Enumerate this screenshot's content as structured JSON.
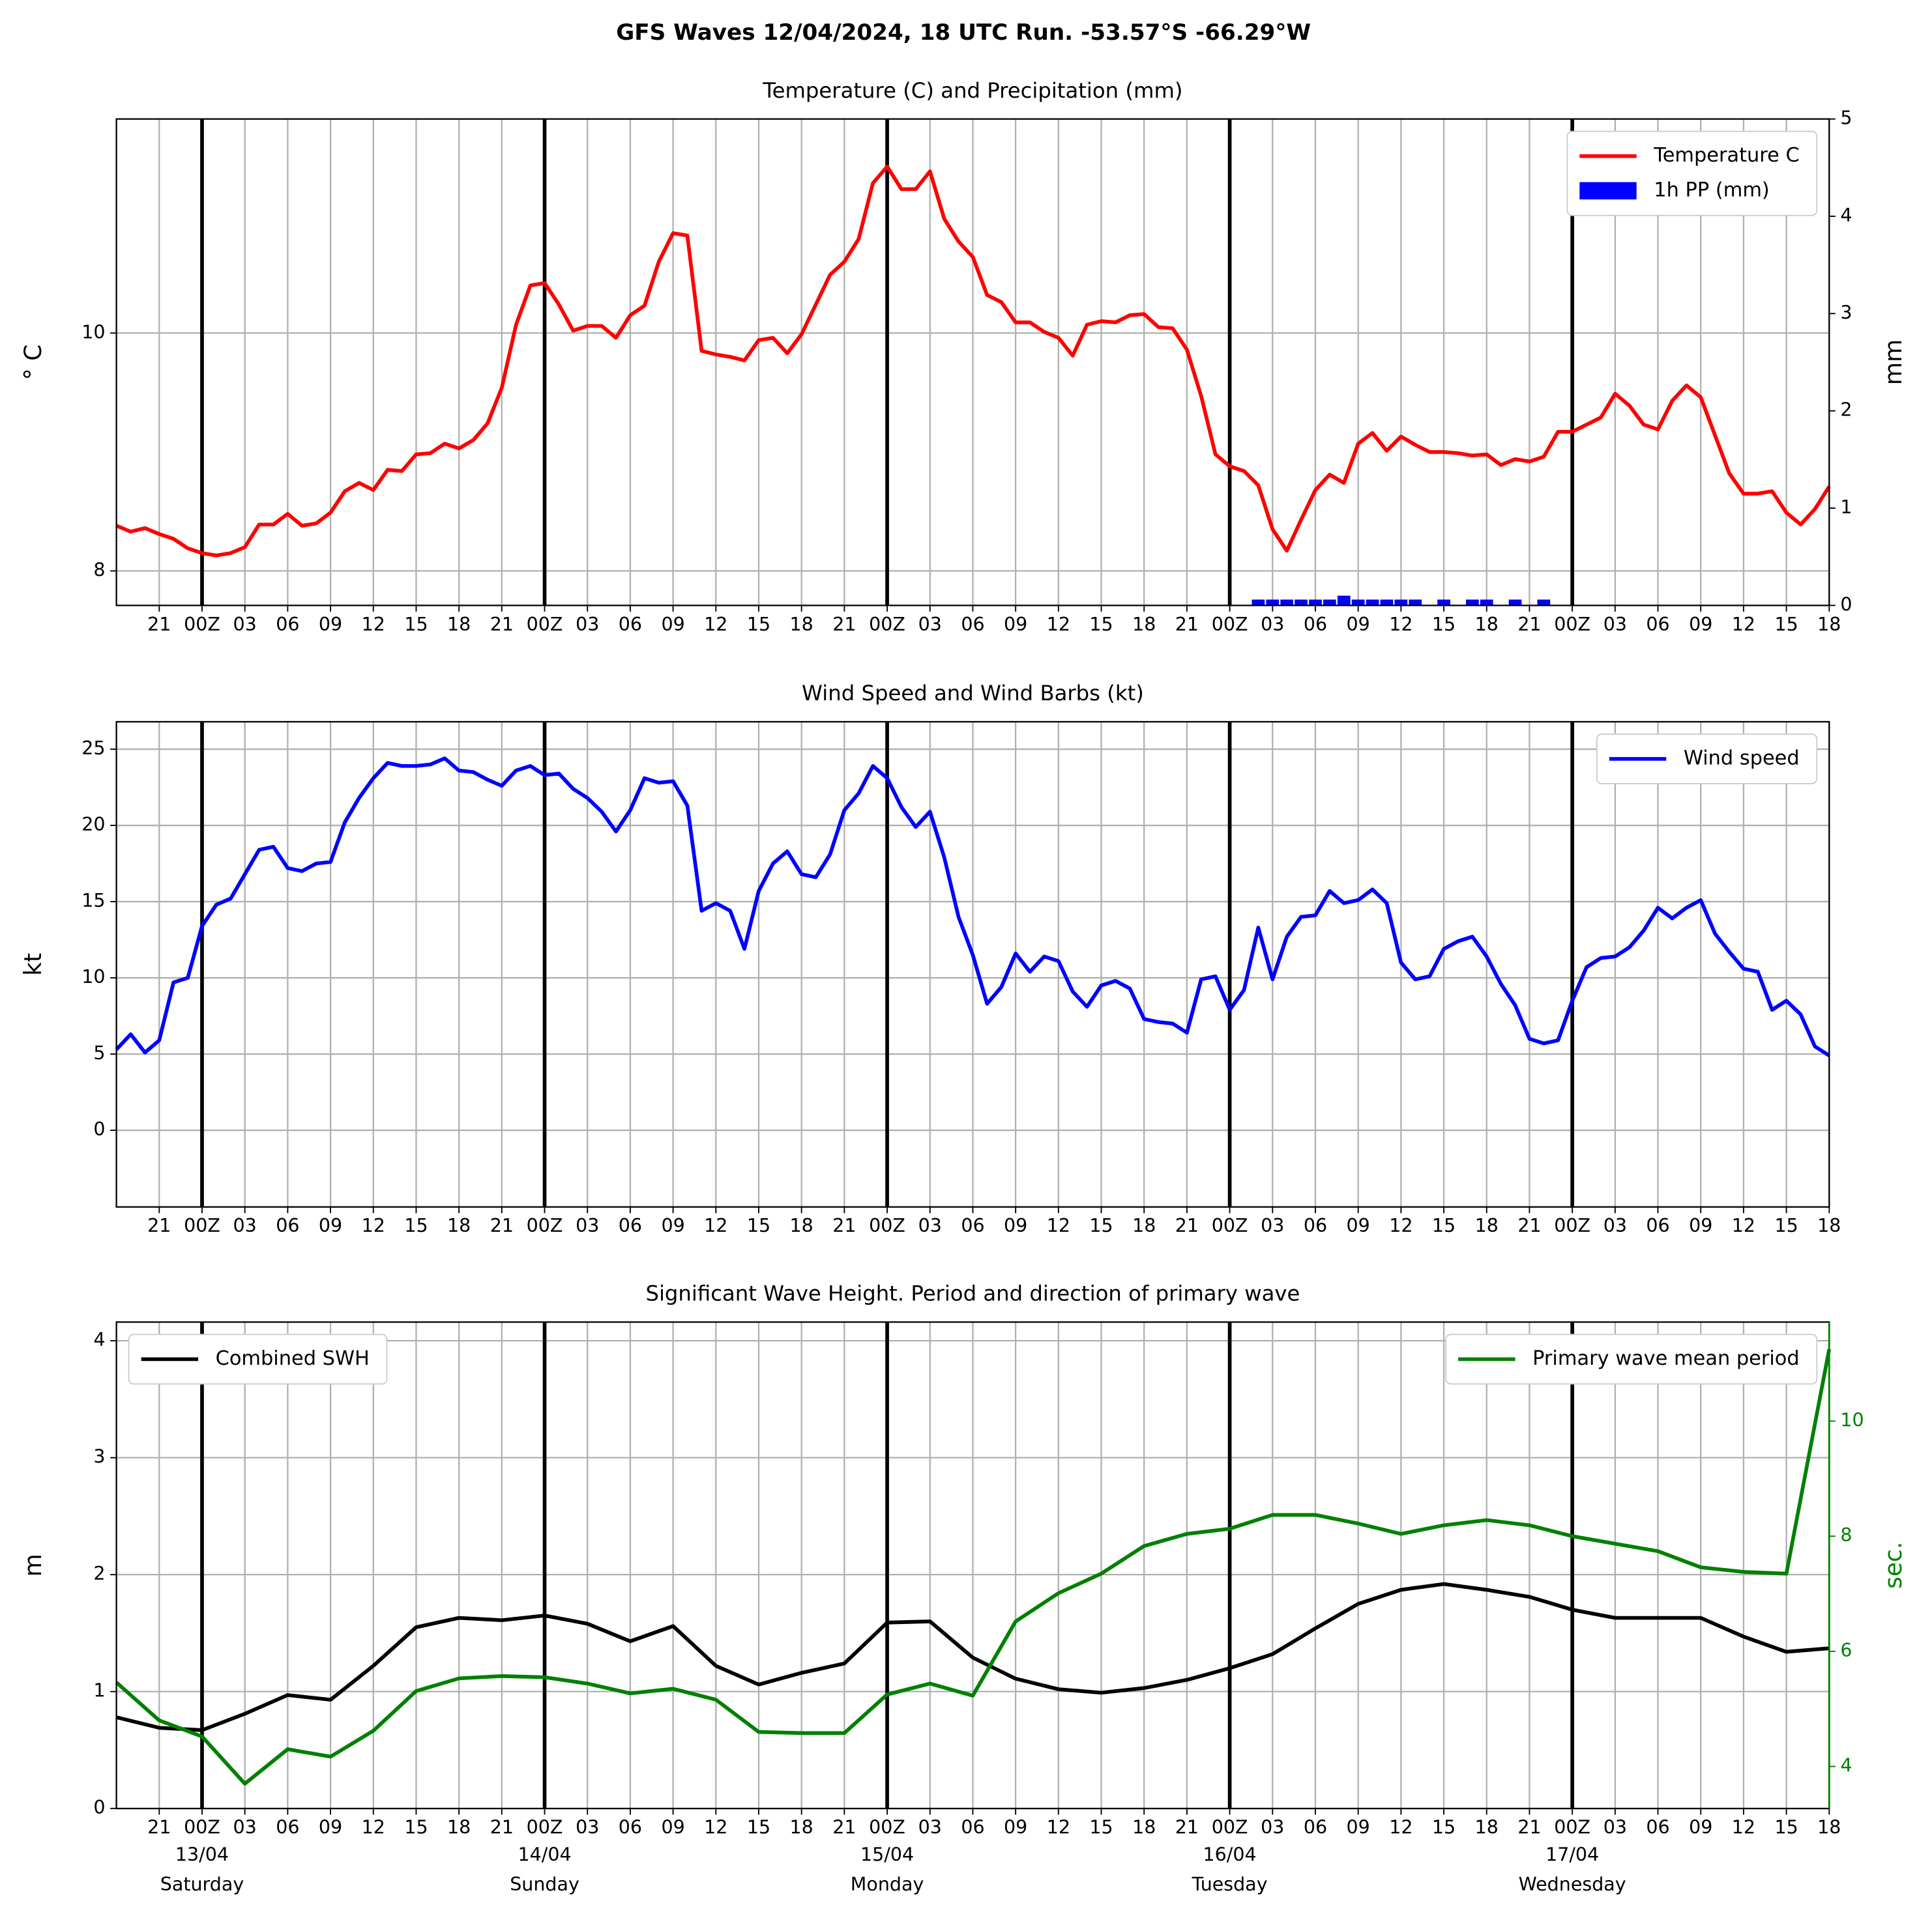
{
  "title": "GFS Waves 12/04/2024, 18 UTC Run. -53.57°S -66.29°W",
  "time_axis": {
    "xlim": [
      "12/04 18",
      "17/04 18"
    ],
    "xticks": [
      {
        "value": "12/04 21",
        "label": "21"
      },
      {
        "value": "13/04 00",
        "label": "00Z"
      },
      {
        "value": "13/04 03",
        "label": "03"
      },
      {
        "value": "13/04 06",
        "label": "06"
      },
      {
        "value": "13/04 09",
        "label": "09"
      },
      {
        "value": "13/04 12",
        "label": "12"
      },
      {
        "value": "13/04 15",
        "label": "15"
      },
      {
        "value": "13/04 18",
        "label": "18"
      },
      {
        "value": "13/04 21",
        "label": "21"
      },
      {
        "value": "14/04 00",
        "label": "00Z"
      },
      {
        "value": "14/04 03",
        "label": "03"
      },
      {
        "value": "14/04 06",
        "label": "06"
      },
      {
        "value": "14/04 09",
        "label": "09"
      },
      {
        "value": "14/04 12",
        "label": "12"
      },
      {
        "value": "14/04 15",
        "label": "15"
      },
      {
        "value": "14/04 18",
        "label": "18"
      },
      {
        "value": "14/04 21",
        "label": "21"
      },
      {
        "value": "15/04 00",
        "label": "00Z"
      },
      {
        "value": "15/04 03",
        "label": "03"
      },
      {
        "value": "15/04 06",
        "label": "06"
      },
      {
        "value": "15/04 09",
        "label": "09"
      },
      {
        "value": "15/04 12",
        "label": "12"
      },
      {
        "value": "15/04 15",
        "label": "15"
      },
      {
        "value": "15/04 18",
        "label": "18"
      },
      {
        "value": "15/04 21",
        "label": "21"
      },
      {
        "value": "16/04 00",
        "label": "00Z"
      },
      {
        "value": "16/04 03",
        "label": "03"
      },
      {
        "value": "16/04 06",
        "label": "06"
      },
      {
        "value": "16/04 09",
        "label": "09"
      },
      {
        "value": "16/04 12",
        "label": "12"
      },
      {
        "value": "16/04 15",
        "label": "15"
      },
      {
        "value": "16/04 18",
        "label": "18"
      },
      {
        "value": "16/04 21",
        "label": "21"
      },
      {
        "value": "17/04 00",
        "label": "00Z"
      },
      {
        "value": "17/04 03",
        "label": "03"
      },
      {
        "value": "17/04 06",
        "label": "06"
      },
      {
        "value": "17/04 09",
        "label": "09"
      },
      {
        "value": "17/04 12",
        "label": "12"
      },
      {
        "value": "17/04 15",
        "label": "15"
      },
      {
        "value": "17/04 18",
        "label": "18"
      }
    ],
    "grid": true
  },
  "chart_data": [
    {
      "type": "line",
      "title": "Temperature (C) and Precipitation (mm)",
      "ylabel": "° C",
      "y2label": "mm",
      "ylim": [
        7.71,
        11.8
      ],
      "yticks": [
        8,
        10
      ],
      "y2lim": [
        0,
        5
      ],
      "y2ticks": [
        0,
        1,
        2,
        3,
        4,
        5
      ],
      "grid": true,
      "legend": "upper right",
      "x": [
        "12/04 18",
        "12/04 19",
        "12/04 20",
        "12/04 21",
        "12/04 22",
        "12/04 23",
        "13/04 00",
        "13/04 01",
        "13/04 02",
        "13/04 03",
        "13/04 04",
        "13/04 05",
        "13/04 06",
        "13/04 07",
        "13/04 08",
        "13/04 09",
        "13/04 10",
        "13/04 11",
        "13/04 12",
        "13/04 13",
        "13/04 14",
        "13/04 15",
        "13/04 16",
        "13/04 17",
        "13/04 18",
        "13/04 19",
        "13/04 20",
        "13/04 21",
        "13/04 22",
        "13/04 23",
        "14/04 00",
        "14/04 01",
        "14/04 02",
        "14/04 03",
        "14/04 04",
        "14/04 05",
        "14/04 06",
        "14/04 07",
        "14/04 08",
        "14/04 09",
        "14/04 10",
        "14/04 11",
        "14/04 12",
        "14/04 13",
        "14/04 14",
        "14/04 15",
        "14/04 16",
        "14/04 17",
        "14/04 18",
        "14/04 19",
        "14/04 20",
        "14/04 21",
        "14/04 22",
        "14/04 23",
        "15/04 00",
        "15/04 01",
        "15/04 02",
        "15/04 03",
        "15/04 04",
        "15/04 05",
        "15/04 06",
        "15/04 07",
        "15/04 08",
        "15/04 09",
        "15/04 10",
        "15/04 11",
        "15/04 12",
        "15/04 13",
        "15/04 14",
        "15/04 15",
        "15/04 16",
        "15/04 17",
        "15/04 18",
        "15/04 19",
        "15/04 20",
        "15/04 21",
        "15/04 22",
        "15/04 23",
        "16/04 00",
        "16/04 01",
        "16/04 02",
        "16/04 03",
        "16/04 04",
        "16/04 05",
        "16/04 06",
        "16/04 07",
        "16/04 08",
        "16/04 09",
        "16/04 10",
        "16/04 11",
        "16/04 12",
        "16/04 13",
        "16/04 14",
        "16/04 15",
        "16/04 16",
        "16/04 17",
        "16/04 18",
        "16/04 19",
        "16/04 20",
        "16/04 21",
        "16/04 22",
        "16/04 23",
        "17/04 00",
        "17/04 01",
        "17/04 02",
        "17/04 03",
        "17/04 04",
        "17/04 05",
        "17/04 06",
        "17/04 07",
        "17/04 08",
        "17/04 09",
        "17/04 10",
        "17/04 11",
        "17/04 12",
        "17/04 13",
        "17/04 14",
        "17/04 15",
        "17/04 16",
        "17/04 17",
        "17/04 18"
      ],
      "series": [
        {
          "name": "Temperature C",
          "type": "line",
          "color": "#ff0000",
          "values": [
            8.38,
            8.33,
            8.36,
            8.31,
            8.27,
            8.19,
            8.15,
            8.13,
            8.15,
            8.2,
            8.39,
            8.39,
            8.48,
            8.38,
            8.4,
            8.49,
            8.67,
            8.74,
            8.68,
            8.85,
            8.84,
            8.98,
            8.99,
            9.07,
            9.03,
            9.1,
            9.24,
            9.54,
            10.07,
            10.4,
            10.42,
            10.24,
            10.02,
            10.06,
            10.06,
            9.96,
            10.15,
            10.23,
            10.6,
            10.84,
            10.82,
            9.85,
            9.82,
            9.8,
            9.77,
            9.94,
            9.96,
            9.83,
            9.99,
            10.24,
            10.49,
            10.6,
            10.79,
            11.26,
            11.4,
            11.21,
            11.21,
            11.36,
            10.96,
            10.77,
            10.64,
            10.32,
            10.26,
            10.09,
            10.09,
            10.01,
            9.96,
            9.81,
            10.07,
            10.1,
            10.09,
            10.15,
            10.16,
            10.05,
            10.04,
            9.86,
            9.47,
            8.98,
            8.88,
            8.84,
            8.72,
            8.35,
            8.17,
            8.43,
            8.68,
            8.81,
            8.74,
            9.07,
            9.16,
            9.01,
            9.13,
            9.06,
            9.0,
            9.0,
            8.99,
            8.97,
            8.98,
            8.89,
            8.94,
            8.92,
            8.96,
            9.17,
            9.17,
            9.23,
            9.29,
            9.49,
            9.39,
            9.23,
            9.19,
            9.43,
            9.56,
            9.46,
            9.14,
            8.82,
            8.65,
            8.65,
            8.67,
            8.49,
            8.39,
            8.52,
            8.71
          ]
        },
        {
          "name": "1h PP (mm)",
          "type": "bar",
          "axis": "y2",
          "color": "#0000ff",
          "values": [
            0,
            0,
            0,
            0,
            0,
            0,
            0,
            0,
            0,
            0,
            0,
            0,
            0,
            0,
            0,
            0,
            0,
            0,
            0,
            0,
            0,
            0,
            0,
            0,
            0,
            0,
            0,
            0,
            0,
            0,
            0,
            0,
            0,
            0,
            0,
            0,
            0,
            0,
            0,
            0,
            0,
            0,
            0,
            0,
            0,
            0,
            0,
            0,
            0,
            0,
            0,
            0,
            0,
            0,
            0,
            0,
            0,
            0,
            0,
            0,
            0,
            0,
            0,
            0,
            0,
            0,
            0,
            0,
            0,
            0,
            0,
            0,
            0,
            0,
            0,
            0,
            0,
            0,
            0,
            0,
            0.06,
            0.06,
            0.06,
            0.06,
            0.06,
            0.06,
            0.1,
            0.06,
            0.06,
            0.06,
            0.06,
            0.06,
            0,
            0.06,
            0,
            0.06,
            0.06,
            0,
            0.06,
            0,
            0.06,
            0,
            0,
            0,
            0,
            0,
            0,
            0,
            0,
            0,
            0,
            0,
            0,
            0,
            0,
            0,
            0,
            0,
            0,
            0,
            0
          ]
        }
      ]
    },
    {
      "type": "line",
      "title": "Wind Speed and Wind Barbs (kt)",
      "ylabel": "kt",
      "ylim": [
        -5.03,
        26.8
      ],
      "yticks": [
        0,
        5,
        10,
        15,
        20,
        25
      ],
      "grid": true,
      "legend": "upper right",
      "x": [
        "12/04 18",
        "12/04 19",
        "12/04 20",
        "12/04 21",
        "12/04 22",
        "12/04 23",
        "13/04 00",
        "13/04 01",
        "13/04 02",
        "13/04 03",
        "13/04 04",
        "13/04 05",
        "13/04 06",
        "13/04 07",
        "13/04 08",
        "13/04 09",
        "13/04 10",
        "13/04 11",
        "13/04 12",
        "13/04 13",
        "13/04 14",
        "13/04 15",
        "13/04 16",
        "13/04 17",
        "13/04 18",
        "13/04 19",
        "13/04 20",
        "13/04 21",
        "13/04 22",
        "13/04 23",
        "14/04 00",
        "14/04 01",
        "14/04 02",
        "14/04 03",
        "14/04 04",
        "14/04 05",
        "14/04 06",
        "14/04 07",
        "14/04 08",
        "14/04 09",
        "14/04 10",
        "14/04 11",
        "14/04 12",
        "14/04 13",
        "14/04 14",
        "14/04 15",
        "14/04 16",
        "14/04 17",
        "14/04 18",
        "14/04 19",
        "14/04 20",
        "14/04 21",
        "14/04 22",
        "14/04 23",
        "15/04 00",
        "15/04 01",
        "15/04 02",
        "15/04 03",
        "15/04 04",
        "15/04 05",
        "15/04 06",
        "15/04 07",
        "15/04 08",
        "15/04 09",
        "15/04 10",
        "15/04 11",
        "15/04 12",
        "15/04 13",
        "15/04 14",
        "15/04 15",
        "15/04 16",
        "15/04 17",
        "15/04 18",
        "15/04 19",
        "15/04 20",
        "15/04 21",
        "15/04 22",
        "15/04 23",
        "16/04 00",
        "16/04 01",
        "16/04 02",
        "16/04 03",
        "16/04 04",
        "16/04 05",
        "16/04 06",
        "16/04 07",
        "16/04 08",
        "16/04 09",
        "16/04 10",
        "16/04 11",
        "16/04 12",
        "16/04 13",
        "16/04 14",
        "16/04 15",
        "16/04 16",
        "16/04 17",
        "16/04 18",
        "16/04 19",
        "16/04 20",
        "16/04 21",
        "16/04 22",
        "16/04 23",
        "17/04 00",
        "17/04 01",
        "17/04 02",
        "17/04 03",
        "17/04 04",
        "17/04 05",
        "17/04 06",
        "17/04 07",
        "17/04 08",
        "17/04 09",
        "17/04 10",
        "17/04 11",
        "17/04 12",
        "17/04 13",
        "17/04 14",
        "17/04 15",
        "17/04 16",
        "17/04 17",
        "17/04 18"
      ],
      "series": [
        {
          "name": "Wind speed",
          "type": "line",
          "color": "#0000ff",
          "values": [
            5.3,
            6.3,
            5.1,
            5.9,
            9.7,
            10.0,
            13.4,
            14.8,
            15.2,
            16.8,
            18.4,
            18.6,
            17.2,
            17.0,
            17.5,
            17.6,
            20.2,
            21.8,
            23.1,
            24.1,
            23.9,
            23.9,
            24.0,
            24.4,
            23.6,
            23.5,
            23.0,
            22.6,
            23.6,
            23.9,
            23.3,
            23.4,
            22.4,
            21.8,
            20.9,
            19.6,
            21.0,
            23.1,
            22.8,
            22.9,
            21.3,
            14.4,
            14.9,
            14.4,
            11.9,
            15.7,
            17.5,
            18.3,
            16.8,
            16.6,
            18.1,
            21.0,
            22.1,
            23.9,
            23.1,
            21.2,
            19.9,
            20.9,
            17.9,
            14.0,
            11.5,
            8.3,
            9.4,
            11.6,
            10.4,
            11.4,
            11.1,
            9.1,
            8.1,
            9.5,
            9.8,
            9.3,
            7.3,
            7.1,
            7.0,
            6.4,
            9.9,
            10.1,
            7.9,
            9.2,
            13.3,
            9.9,
            12.7,
            14.0,
            14.1,
            15.7,
            14.9,
            15.1,
            15.8,
            14.9,
            11.0,
            9.9,
            10.1,
            11.9,
            12.4,
            12.7,
            11.4,
            9.6,
            8.2,
            6.0,
            5.7,
            5.9,
            8.5,
            10.7,
            11.3,
            11.4,
            12.0,
            13.1,
            14.6,
            13.9,
            14.6,
            15.1,
            12.9,
            11.7,
            10.6,
            10.4,
            7.9,
            8.5,
            7.6,
            5.5,
            4.9
          ]
        }
      ]
    },
    {
      "type": "line",
      "title": "Significant Wave Height. Period and direction of primary wave",
      "ylabel": "m",
      "y2label": "sec.",
      "y2color": "#008000",
      "ylim": [
        0,
        4.16
      ],
      "yticks": [
        0,
        1,
        2,
        3,
        4
      ],
      "y2lim": [
        3.27,
        11.72
      ],
      "y2ticks": [
        4,
        6,
        8,
        10
      ],
      "grid": true,
      "x": [
        "12/04 18",
        "12/04 21",
        "13/04 00",
        "13/04 03",
        "13/04 06",
        "13/04 09",
        "13/04 12",
        "13/04 15",
        "13/04 18",
        "13/04 21",
        "14/04 00",
        "14/04 03",
        "14/04 06",
        "14/04 09",
        "14/04 12",
        "14/04 15",
        "14/04 18",
        "14/04 21",
        "15/04 00",
        "15/04 03",
        "15/04 06",
        "15/04 09",
        "15/04 12",
        "15/04 15",
        "15/04 18",
        "15/04 21",
        "16/04 00",
        "16/04 03",
        "16/04 06",
        "16/04 09",
        "16/04 12",
        "16/04 15",
        "16/04 18",
        "16/04 21",
        "17/04 00",
        "17/04 03",
        "17/04 06",
        "17/04 09",
        "17/04 12",
        "17/04 15",
        "17/04 18"
      ],
      "series": [
        {
          "name": "Combined SWH",
          "type": "line",
          "color": "#000000",
          "legend": "upper left",
          "values": [
            0.78,
            0.69,
            0.67,
            0.81,
            0.97,
            0.93,
            1.22,
            1.55,
            1.63,
            1.61,
            1.65,
            1.58,
            1.43,
            1.56,
            1.22,
            1.06,
            1.16,
            1.24,
            1.59,
            1.6,
            1.29,
            1.11,
            1.02,
            0.99,
            1.03,
            1.1,
            1.2,
            1.32,
            1.54,
            1.75,
            1.87,
            1.92,
            1.87,
            1.81,
            1.7,
            1.63,
            1.63,
            1.63,
            1.47,
            1.34,
            1.37
          ]
        },
        {
          "name": "Primary wave mean period",
          "type": "line",
          "axis": "y2",
          "color": "#008000",
          "legend": "upper right",
          "values": [
            5.46,
            4.8,
            4.52,
            3.7,
            4.3,
            4.17,
            4.62,
            5.31,
            5.53,
            5.57,
            5.55,
            5.44,
            5.27,
            5.35,
            5.16,
            4.6,
            4.58,
            4.58,
            5.25,
            5.44,
            5.23,
            6.52,
            7.01,
            7.35,
            7.83,
            8.04,
            8.13,
            8.37,
            8.37,
            8.22,
            8.04,
            8.19,
            8.28,
            8.19,
            8.0,
            7.87,
            7.74,
            7.46,
            7.38,
            7.35,
            11.25
          ]
        }
      ],
      "day_labels": [
        {
          "value": "13/04 00",
          "date": "13/04",
          "weekday": "Saturday"
        },
        {
          "value": "14/04 00",
          "date": "14/04",
          "weekday": "Sunday"
        },
        {
          "value": "15/04 00",
          "date": "15/04",
          "weekday": "Monday"
        },
        {
          "value": "16/04 00",
          "date": "16/04",
          "weekday": "Tuesday"
        },
        {
          "value": "17/04 00",
          "date": "17/04",
          "weekday": "Wednesday"
        }
      ]
    }
  ]
}
